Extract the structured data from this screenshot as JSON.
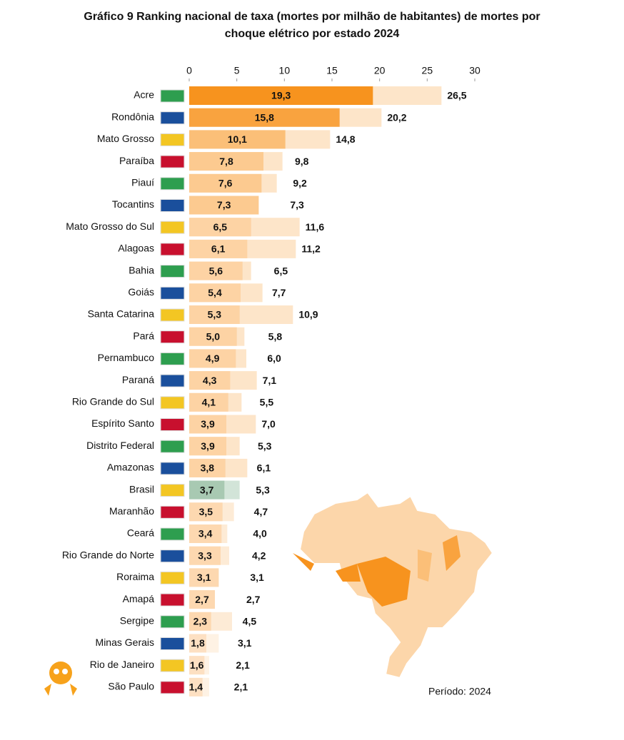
{
  "chart_data": {
    "type": "bar",
    "orientation": "horizontal",
    "title": "Gráfico 9 Ranking nacional de taxa (mortes por milhão de habitantes) de mortes por choque elétrico por estado 2024",
    "annotation": "Período: 2024",
    "categories": [
      "Acre",
      "Rondônia",
      "Mato Grosso",
      "Paraíba",
      "Piauí",
      "Tocantins",
      "Mato Grosso do Sul",
      "Alagoas",
      "Bahia",
      "Goiás",
      "Santa Catarina",
      "Pará",
      "Pernambuco",
      "Paraná",
      "Rio Grande do Sul",
      "Espírito Santo",
      "Distrito Federal",
      "Amazonas",
      "Brasil",
      "Maranhão",
      "Ceará",
      "Rio Grande do Norte",
      "Roraima",
      "Amapá",
      "Sergipe",
      "Minas Gerais",
      "Rio de Janeiro",
      "São Paulo"
    ],
    "series": [
      {
        "colors": [
          "#f7931e",
          "#f9a33f",
          "#fbbf78",
          "#fcca90",
          "#fcca90",
          "#fcca90",
          "#fdd3a4",
          "#fdd3a4",
          "#fdd3a4",
          "#fdd3a4",
          "#fdd3a4",
          "#fdd3a4",
          "#fdd3a4",
          "#fdd3a4",
          "#fdd3a4",
          "#fdd3a4",
          "#fdd3a4",
          "#fdd3a4",
          "#a8c9b2",
          "#fdd8b0",
          "#fdd8b0",
          "#fdd8b0",
          "#fdd8b0",
          "#fdd8b0",
          "#fdd8b0",
          "#fde0c2",
          "#fde0c2",
          "#fde0c2"
        ],
        "values": [
          19.3,
          15.8,
          10.1,
          7.8,
          7.6,
          7.3,
          6.5,
          6.1,
          5.6,
          5.4,
          5.3,
          5.0,
          4.9,
          4.3,
          4.1,
          3.9,
          3.9,
          3.8,
          3.7,
          3.5,
          3.4,
          3.3,
          3.1,
          2.7,
          2.3,
          1.8,
          1.6,
          1.4
        ],
        "value_labels": [
          "19,3",
          "15,8",
          "10,1",
          "7,8",
          "7,6",
          "7,3",
          "6,5",
          "6,1",
          "5,6",
          "5,4",
          "5,3",
          "5,0",
          "4,9",
          "4,3",
          "4,1",
          "3,9",
          "3,9",
          "3,8",
          "3,7",
          "3,5",
          "3,4",
          "3,3",
          "3,1",
          "2,7",
          "2,3",
          "1,8",
          "1,6",
          "1,4"
        ]
      },
      {
        "colors": [
          "#fde5c9",
          "#fde5c9",
          "#fde5c9",
          "#fde5c9",
          "#fde5c9",
          "#fde5c9",
          "#fde5c9",
          "#fde5c9",
          "#fde5c9",
          "#fde5c9",
          "#fde5c9",
          "#fde5c9",
          "#fde5c9",
          "#fde5c9",
          "#fde5c9",
          "#fde5c9",
          "#fde5c9",
          "#fde5c9",
          "#d2e4d8",
          "#fdebd6",
          "#fdebd6",
          "#fdebd6",
          "#fdebd6",
          "#fdebd6",
          "#fdebd6",
          "#fef2e4",
          "#fef2e4",
          "#fef2e4"
        ],
        "values": [
          26.5,
          20.2,
          14.8,
          9.8,
          9.2,
          7.3,
          11.6,
          11.2,
          6.5,
          7.7,
          10.9,
          5.8,
          6.0,
          7.1,
          5.5,
          7.0,
          5.3,
          6.1,
          5.3,
          4.7,
          4.0,
          4.2,
          3.1,
          2.7,
          4.5,
          3.1,
          2.1,
          2.1
        ],
        "value_labels": [
          "26,5",
          "20,2",
          "14,8",
          "9,8",
          "9,2",
          "7,3",
          "11,6",
          "11,2",
          "6,5",
          "7,7",
          "10,9",
          "5,8",
          "6,0",
          "7,1",
          "5,5",
          "7,0",
          "5,3",
          "6,1",
          "5,3",
          "4,7",
          "4,0",
          "4,2",
          "3,1",
          "2,7",
          "4,5",
          "3,1",
          "2,1",
          "2,1"
        ]
      }
    ],
    "xlim": [
      0,
      30
    ],
    "xticks": [
      0,
      5,
      10,
      15,
      20,
      25,
      30
    ]
  }
}
